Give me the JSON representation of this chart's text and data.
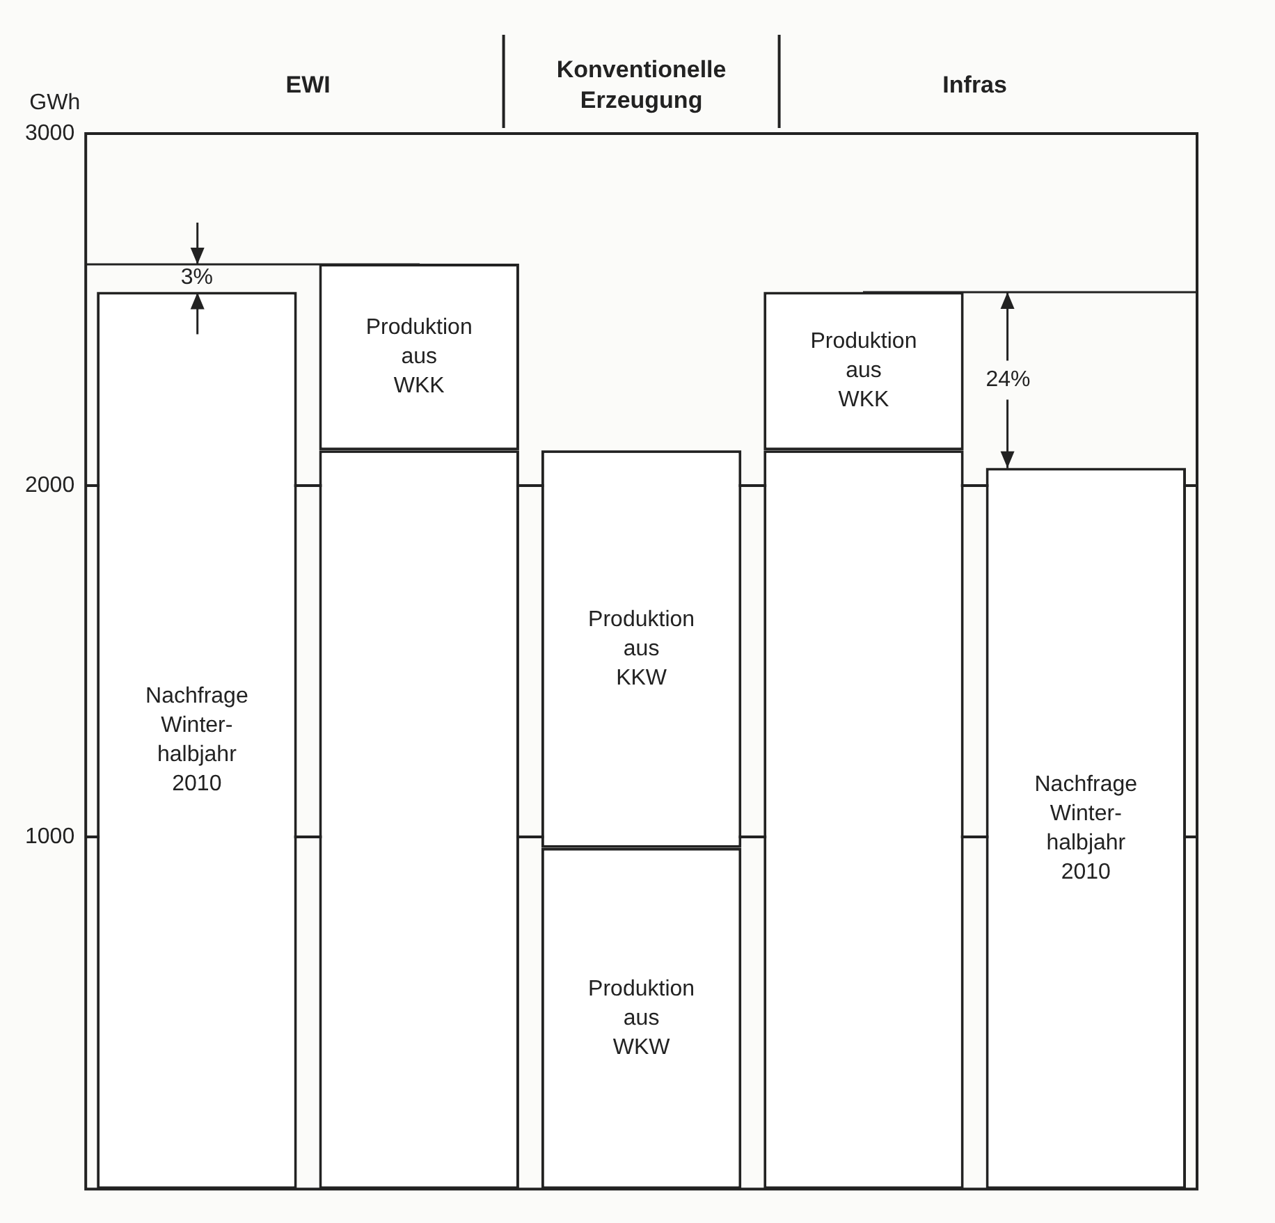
{
  "chart_data": {
    "type": "bar",
    "stacked": true,
    "ylabel": "GWh",
    "categories": [
      null,
      null,
      null,
      null,
      null
    ],
    "series": [
      {
        "color": "#ffffff",
        "values": [
          null,
          2100,
          null,
          2100,
          null
        ]
      },
      {
        "name": "Produktion aus WKW",
        "color": "#ffffff",
        "values": [
          null,
          null,
          970,
          null,
          null
        ]
      },
      {
        "name": "Produktion aus KKW",
        "color": "#ffffff",
        "values": [
          null,
          null,
          1130,
          null,
          null
        ]
      },
      {
        "name": "Produktion aus WKK",
        "color": "#ffffff",
        "values": [
          null,
          530,
          null,
          450,
          null
        ]
      },
      {
        "name": "Nachfrage Winter-halbjahr 2010",
        "color": "#ffffff",
        "values": [
          2550,
          null,
          null,
          null,
          2050
        ]
      }
    ],
    "ylim": [
      0,
      3000
    ],
    "yticks": [
      1000,
      2000,
      3000
    ],
    "grid": "y",
    "legend": false,
    "annotations": [
      "EWI",
      "Konventionelle Erzeugung",
      "Infras",
      "3%",
      "24%"
    ]
  }
}
